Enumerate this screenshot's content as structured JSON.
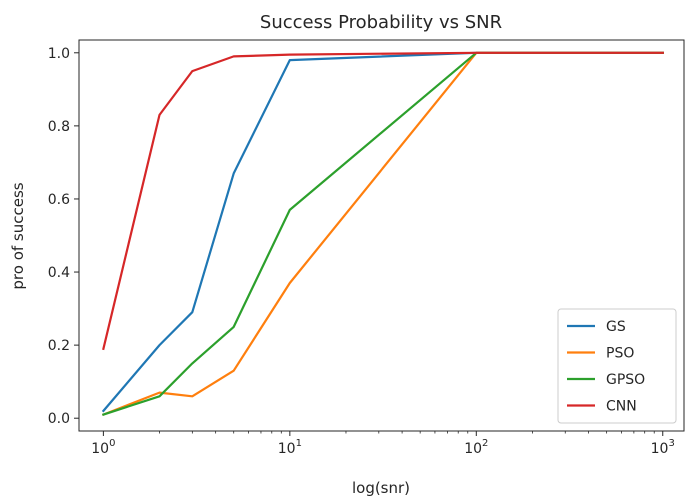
{
  "chart_data": {
    "type": "line",
    "title": "Success Probability vs SNR",
    "xlabel": "log(snr)",
    "ylabel": "pro of success",
    "xscale": "log",
    "xlim": [
      0.74,
      1300
    ],
    "ylim": [
      -0.035,
      1.035
    ],
    "xticks": [
      {
        "value": 1,
        "base": "10",
        "exp": "0"
      },
      {
        "value": 10,
        "base": "10",
        "exp": "1"
      },
      {
        "value": 100,
        "base": "10",
        "exp": "2"
      },
      {
        "value": 1000,
        "base": "10",
        "exp": "3"
      }
    ],
    "yticks": [
      0.0,
      0.2,
      0.4,
      0.6,
      0.8,
      1.0
    ],
    "ytick_labels": [
      "0.0",
      "0.2",
      "0.4",
      "0.6",
      "0.8",
      "1.0"
    ],
    "grid": false,
    "legend_position": "bottom-right",
    "x": [
      1,
      2,
      3,
      5,
      10,
      100,
      1000
    ],
    "series": [
      {
        "name": "GS",
        "color": "#1f77b4",
        "values": [
          0.02,
          0.2,
          0.29,
          0.67,
          0.98,
          1.0,
          1.0
        ]
      },
      {
        "name": "PSO",
        "color": "#ff7f0e",
        "values": [
          0.01,
          0.07,
          0.06,
          0.13,
          0.37,
          1.0,
          1.0
        ]
      },
      {
        "name": "GPSO",
        "color": "#2ca02c",
        "values": [
          0.01,
          0.06,
          0.15,
          0.25,
          0.57,
          1.0,
          1.0
        ]
      },
      {
        "name": "CNN",
        "color": "#d62728",
        "values": [
          0.19,
          0.83,
          0.95,
          0.99,
          0.995,
          1.0,
          1.0
        ]
      }
    ]
  }
}
